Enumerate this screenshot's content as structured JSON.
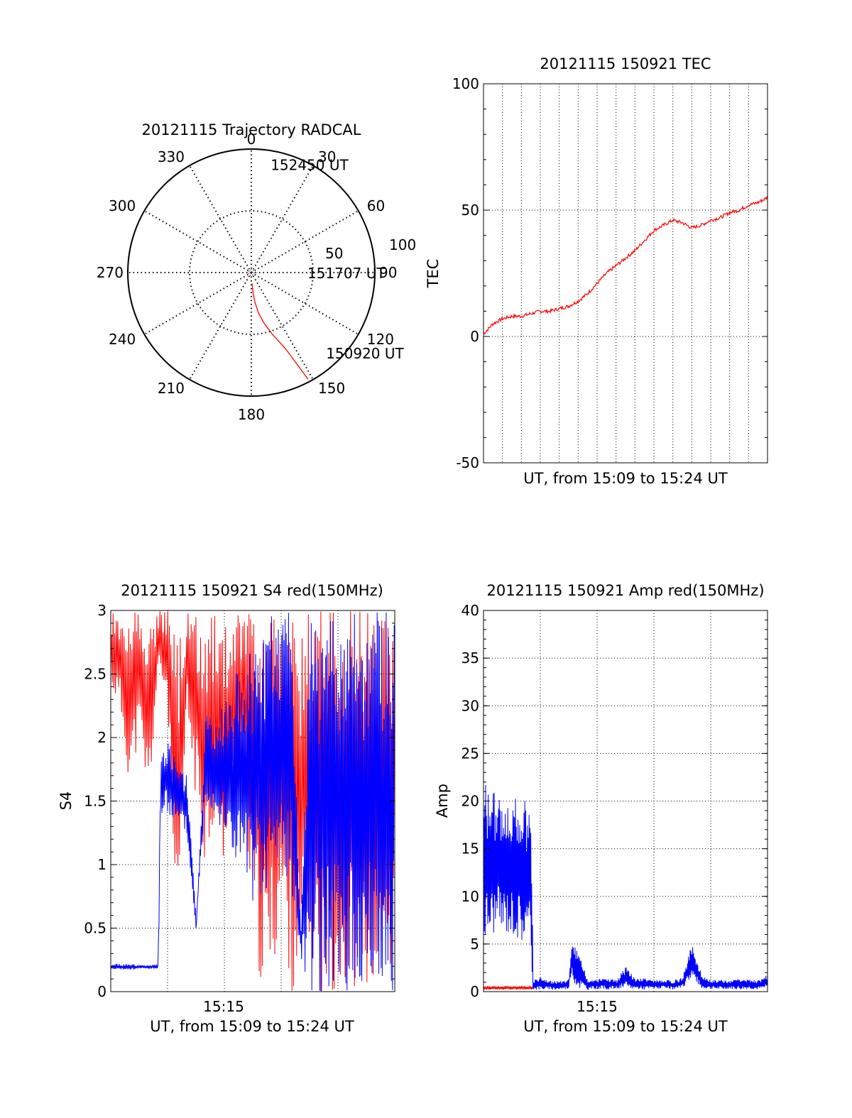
{
  "chart_data": [
    {
      "panel": "trajectory",
      "type": "scatter",
      "title": "20121115 Trajectory RADCAL",
      "azimuth_labels": [
        "0",
        "30",
        "60",
        "90",
        "120",
        "150",
        "180",
        "210",
        "240",
        "270",
        "300",
        "330"
      ],
      "radial_labels": [
        "50",
        "100"
      ],
      "rlim": [
        0,
        100
      ],
      "track": [
        [
          152,
          176
        ],
        [
          156,
          120
        ],
        [
          161,
          96
        ],
        [
          166,
          76
        ],
        [
          170,
          60
        ],
        [
          173,
          44
        ],
        [
          175,
          30
        ],
        [
          176,
          16
        ]
      ],
      "track_color": "#ff0000",
      "annotations": [
        {
          "text": "152450 UT",
          "az": 13,
          "r": 90
        },
        {
          "text": "151707 UT",
          "az": 90,
          "r": 50
        },
        {
          "text": "150920 UT",
          "az": 135,
          "r": 92
        }
      ],
      "grid": true
    },
    {
      "panel": "tec",
      "type": "line",
      "title": "20121115 150921 TEC",
      "xlabel": "UT, from 15:09 to 15:24 UT",
      "ylabel": "TEC",
      "ylim": [
        -50,
        100
      ],
      "xlim": [
        0,
        15
      ],
      "yticks": [
        "-50",
        "0",
        "50",
        "100"
      ],
      "series": [
        {
          "color": "#ff0000",
          "x": [
            0,
            0.5,
            1,
            1.5,
            2,
            2.5,
            3,
            3.5,
            4,
            4.5,
            5,
            5.5,
            6,
            6.5,
            7,
            7.5,
            8,
            8.5,
            9,
            9.5,
            10,
            10.5,
            11,
            11.5,
            12,
            12.5,
            13,
            13.5,
            14,
            14.5,
            15
          ],
          "values": [
            1,
            5,
            7,
            8,
            8,
            9,
            10,
            10,
            11,
            12,
            14,
            17,
            21,
            25,
            28,
            31,
            34,
            38,
            42,
            44,
            46,
            45,
            43,
            44,
            46,
            47,
            49,
            50,
            52,
            53,
            55
          ]
        }
      ],
      "grid": true
    },
    {
      "panel": "s4",
      "type": "line",
      "title": "20121115 150921 S4 red(150MHz)",
      "xlabel": "UT, from 15:09 to 15:24 UT",
      "ylabel": "S4",
      "ylim": [
        0,
        3
      ],
      "xlim": [
        0,
        15
      ],
      "xticks": [
        "15:15"
      ],
      "yticks": [
        "0",
        "0.5",
        "1",
        "1.5",
        "2",
        "2.5",
        "3"
      ],
      "series": [
        {
          "color": "#ff0000",
          "x": [
            0,
            0.5,
            1,
            1.5,
            2,
            2.5,
            3,
            3.5,
            4,
            4.5,
            5,
            5.5,
            6,
            6.5,
            7,
            7.5,
            8,
            8.5,
            9,
            9.5,
            10,
            10.5,
            11,
            11.5,
            12,
            12.5,
            13,
            13.5,
            14,
            14.5,
            15
          ],
          "low": [
            2.4,
            2.2,
            1.6,
            2.0,
            1.4,
            2.5,
            2.3,
            0.0,
            2.2,
            1.5,
            1.0,
            1.3,
            0.9,
            1.5,
            1.6,
            0.4,
            0.0,
            0.0,
            0.6,
            0.0,
            0.0,
            0.3,
            0.0,
            0.0,
            0.0,
            0.0,
            0.0,
            0.0,
            0.0,
            0.0,
            0.0
          ],
          "high": [
            3,
            3,
            3,
            3,
            3,
            3,
            3,
            2.8,
            3,
            3,
            3,
            3,
            3,
            3,
            3,
            3,
            3,
            3,
            3,
            3,
            3,
            3,
            3,
            3,
            3,
            3,
            3,
            3,
            3,
            3,
            3
          ]
        },
        {
          "color": "#0000ff",
          "x": [
            0,
            0.5,
            1,
            1.5,
            2,
            2.5,
            2.6,
            3,
            3.5,
            4,
            4.5,
            5,
            5.5,
            6,
            6.5,
            7,
            7.5,
            8,
            8.5,
            9,
            9.5,
            10,
            10.5,
            11,
            11.5,
            12,
            12.5,
            13,
            13.5,
            14,
            14.5,
            15
          ],
          "low": [
            0.17,
            0.17,
            0.17,
            0.18,
            0.18,
            0.18,
            1.3,
            1.4,
            1.3,
            1.25,
            0.5,
            1.5,
            1.4,
            1.2,
            1.0,
            0.9,
            0.7,
            0.6,
            0.8,
            0.9,
            0.8,
            0.3,
            0.0,
            0.0,
            0.0,
            0.0,
            0.0,
            0.0,
            0.0,
            0.0,
            0.0,
            0.0
          ],
          "high": [
            0.22,
            0.22,
            0.22,
            0.21,
            0.21,
            0.22,
            1.9,
            2.0,
            1.8,
            1.7,
            0.55,
            2.2,
            2.1,
            2.3,
            2.5,
            2.6,
            2.7,
            2.9,
            3,
            3,
            3,
            0.45,
            3,
            3,
            3,
            3,
            3,
            3,
            3,
            3,
            3,
            3
          ]
        }
      ],
      "grid": true
    },
    {
      "panel": "amp",
      "type": "line",
      "title": "20121115 150921 Amp red(150MHz)",
      "xlabel": "UT, from 15:09 to 15:24 UT",
      "ylabel": "Amp",
      "ylim": [
        0,
        40
      ],
      "xlim": [
        0,
        15
      ],
      "xticks": [
        "15:15"
      ],
      "yticks": [
        "0",
        "5",
        "10",
        "15",
        "20",
        "25",
        "30",
        "35",
        "40"
      ],
      "series": [
        {
          "color": "#0000ff",
          "x": [
            0,
            0.5,
            1,
            1.5,
            2,
            2.5,
            2.6,
            3,
            3.5,
            4,
            4.5,
            4.6,
            5,
            5.5,
            6,
            6.5,
            7,
            7.5,
            8,
            8.5,
            9,
            9.5,
            10,
            10.5,
            11,
            11.5,
            12,
            12.5,
            13,
            13.5,
            14,
            14.5,
            15
          ],
          "low": [
            5,
            6,
            6,
            6,
            5,
            5,
            0.2,
            0.2,
            0.2,
            0.2,
            0.3,
            1.5,
            0.3,
            0.2,
            0.3,
            0.2,
            0.3,
            0.2,
            0.3,
            0.2,
            0.3,
            0.3,
            0.2,
            0.3,
            1.5,
            0.3,
            0.3,
            0.2,
            0.3,
            0.2,
            0.3,
            0.2,
            0.3
          ],
          "high": [
            22,
            21,
            21,
            20,
            21,
            18,
            1.2,
            1.5,
            1.2,
            1.1,
            1.3,
            5.0,
            4.5,
            1.2,
            1.3,
            1.5,
            1.2,
            2.8,
            1.3,
            1.5,
            1.2,
            1.3,
            1.2,
            1.5,
            5.2,
            1.8,
            1.2,
            1.3,
            1.2,
            1.5,
            1.3,
            1.2,
            1.8
          ]
        },
        {
          "color": "#ff0000",
          "x": [
            0,
            0.5,
            1,
            1.5,
            2,
            2.5,
            2.6
          ],
          "low": [
            0.2,
            0.2,
            0.2,
            0.2,
            0.2,
            0.2,
            0.2
          ],
          "high": [
            0.6,
            0.6,
            0.6,
            0.6,
            0.6,
            0.6,
            0.6
          ]
        }
      ],
      "grid": true
    }
  ]
}
